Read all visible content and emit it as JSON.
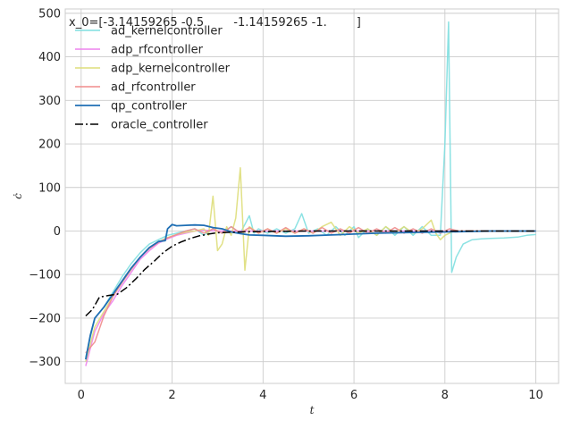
{
  "chart_data": {
    "type": "line",
    "title": "",
    "annotation": "x_0=[-3.14159265 -0.5        -1.14159265 -1.        ]",
    "xlabel": "t",
    "ylabel": "ċ",
    "xlim": [
      -0.35,
      10.5
    ],
    "ylim": [
      -350,
      510
    ],
    "xticks": [
      0,
      2,
      4,
      6,
      8,
      10
    ],
    "yticks": [
      -300,
      -200,
      -100,
      0,
      100,
      200,
      300,
      400,
      500
    ],
    "xtick_labels": [
      "0",
      "2",
      "4",
      "6",
      "8",
      "10"
    ],
    "ytick_labels": [
      "−300",
      "−200",
      "−100",
      "0",
      "100",
      "200",
      "300",
      "400",
      "500"
    ],
    "grid": true,
    "legend_position": "top-left",
    "series": [
      {
        "name": "ad_kernelcontroller",
        "color": "#7fdfe0",
        "style": "solid",
        "x": [
          0.1,
          0.3,
          0.5,
          0.7,
          0.9,
          1.1,
          1.3,
          1.5,
          1.7,
          1.9,
          2.1,
          2.3,
          2.5,
          2.7,
          2.9,
          3.1,
          3.3,
          3.5,
          3.7,
          3.8,
          3.9,
          4.1,
          4.3,
          4.5,
          4.7,
          4.85,
          5.0,
          5.2,
          5.4,
          5.6,
          5.8,
          6.0,
          6.1,
          6.3,
          6.5,
          6.7,
          6.9,
          7.1,
          7.3,
          7.5,
          7.7,
          7.9,
          8.0,
          8.08,
          8.15,
          8.25,
          8.4,
          8.6,
          8.8,
          9.0,
          9.3,
          9.6,
          9.8,
          10.0
        ],
        "y": [
          -290,
          -200,
          -175,
          -140,
          -105,
          -75,
          -50,
          -30,
          -20,
          -10,
          -5,
          0,
          5,
          -10,
          5,
          -5,
          10,
          -5,
          35,
          -5,
          5,
          -5,
          5,
          -5,
          5,
          40,
          -5,
          5,
          -10,
          10,
          -10,
          10,
          -15,
          5,
          -10,
          10,
          -10,
          10,
          -10,
          10,
          -10,
          -10,
          200,
          480,
          -95,
          -60,
          -30,
          -20,
          -18,
          -17,
          -16,
          -14,
          -10,
          -8
        ]
      },
      {
        "name": "adp_rfcontroller",
        "color": "#ee82ee",
        "style": "solid",
        "x": [
          0.1,
          0.3,
          0.5,
          0.7,
          0.9,
          1.1,
          1.3,
          1.5,
          1.7,
          1.9,
          2.1,
          2.3,
          2.5,
          2.7,
          3.0,
          3.5,
          4.0,
          4.5,
          5.0,
          5.5,
          6.0,
          6.5,
          7.0,
          7.5,
          8.0,
          8.5,
          9.0,
          9.5,
          10.0
        ],
        "y": [
          -310,
          -230,
          -190,
          -160,
          -125,
          -95,
          -65,
          -45,
          -28,
          -18,
          -10,
          -5,
          0,
          2,
          0,
          0,
          0,
          0,
          0,
          0,
          0,
          0,
          0,
          0,
          0,
          0,
          0,
          0,
          0
        ]
      },
      {
        "name": "adp_kernelcontroller",
        "color": "#dede7a",
        "style": "solid",
        "x": [
          0.1,
          0.3,
          0.5,
          0.7,
          0.9,
          1.1,
          1.3,
          1.5,
          1.7,
          1.9,
          2.1,
          2.3,
          2.5,
          2.7,
          2.8,
          2.9,
          3.0,
          3.1,
          3.2,
          3.3,
          3.4,
          3.5,
          3.6,
          3.7,
          3.9,
          4.1,
          4.3,
          4.5,
          4.7,
          4.9,
          5.1,
          5.3,
          5.5,
          5.7,
          5.9,
          6.1,
          6.3,
          6.5,
          6.7,
          6.9,
          7.1,
          7.3,
          7.5,
          7.7,
          7.8,
          7.9,
          8.0,
          8.2,
          8.5,
          9.0,
          9.5,
          10.0
        ],
        "y": [
          -300,
          -220,
          -185,
          -150,
          -118,
          -88,
          -60,
          -40,
          -25,
          -15,
          -8,
          -3,
          0,
          5,
          -10,
          80,
          -45,
          -30,
          10,
          -10,
          30,
          145,
          -90,
          10,
          -5,
          5,
          -5,
          5,
          -5,
          5,
          -5,
          10,
          20,
          -10,
          10,
          -5,
          5,
          -10,
          10,
          -5,
          10,
          -5,
          5,
          25,
          -5,
          -20,
          -10,
          0,
          0,
          0,
          0,
          0
        ]
      },
      {
        "name": "ad_rfcontroller",
        "color": "#f08c8c",
        "style": "solid",
        "x": [
          0.1,
          0.3,
          0.5,
          0.7,
          0.9,
          1.1,
          1.3,
          1.5,
          1.7,
          1.9,
          2.1,
          2.3,
          2.5,
          2.7,
          2.9,
          3.1,
          3.3,
          3.5,
          3.7,
          3.9,
          4.1,
          4.3,
          4.5,
          4.7,
          4.9,
          5.1,
          5.3,
          5.5,
          5.7,
          5.9,
          6.1,
          6.3,
          6.5,
          6.7,
          6.9,
          7.1,
          7.3,
          7.5,
          7.7,
          7.9,
          8.1,
          8.3,
          8.6,
          9.0,
          9.5,
          10.0
        ],
        "y": [
          -280,
          -255,
          -195,
          -150,
          -118,
          -88,
          -60,
          -40,
          -26,
          -16,
          -8,
          0,
          5,
          -5,
          5,
          -5,
          10,
          -5,
          8,
          -5,
          5,
          -5,
          8,
          -5,
          5,
          -5,
          8,
          -5,
          5,
          -5,
          8,
          -5,
          5,
          -5,
          8,
          -5,
          5,
          -5,
          5,
          -5,
          5,
          0,
          0,
          0,
          0,
          0
        ]
      },
      {
        "name": "qp_controller",
        "color": "#1f6fb4",
        "style": "solid",
        "x": [
          0.1,
          0.2,
          0.3,
          0.5,
          0.7,
          0.9,
          1.1,
          1.3,
          1.5,
          1.7,
          1.85,
          1.9,
          2.0,
          2.1,
          2.3,
          2.5,
          2.7,
          2.9,
          3.1,
          3.3,
          3.5,
          3.7,
          4.0,
          4.5,
          5.0,
          5.5,
          6.0,
          6.5,
          7.0,
          7.5,
          8.0,
          8.5,
          9.0,
          9.5,
          10.0
        ],
        "y": [
          -295,
          -240,
          -200,
          -175,
          -145,
          -115,
          -85,
          -60,
          -38,
          -24,
          -22,
          5,
          15,
          12,
          13,
          14,
          13,
          8,
          5,
          -2,
          -6,
          -9,
          -10,
          -12,
          -11,
          -9,
          -7,
          -5,
          -4,
          -3,
          -2,
          -1,
          0,
          0,
          0
        ]
      },
      {
        "name": "oracle_controller",
        "color": "#000000",
        "style": "dashdot",
        "x": [
          0.1,
          0.25,
          0.4,
          0.6,
          0.8,
          1.0,
          1.2,
          1.4,
          1.6,
          1.8,
          2.0,
          2.2,
          2.4,
          2.6,
          2.8,
          3.0,
          3.5,
          4.0,
          5.0,
          6.0,
          7.0,
          8.0,
          9.0,
          10.0
        ],
        "y": [
          -195,
          -180,
          -152,
          -148,
          -145,
          -130,
          -110,
          -88,
          -70,
          -50,
          -35,
          -25,
          -17,
          -11,
          -7,
          -4,
          -2,
          -1,
          0,
          0,
          0,
          0,
          0,
          0
        ]
      }
    ]
  }
}
